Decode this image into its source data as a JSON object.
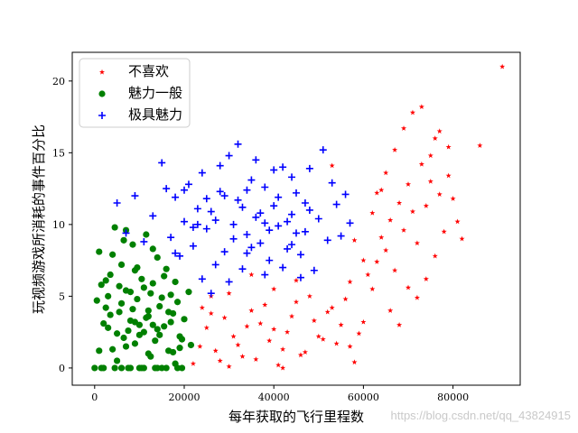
{
  "chart_data": {
    "type": "scatter",
    "title": "",
    "xlabel": "每年获取的飞行里程数",
    "ylabel": "玩视频游戏所消耗的事件百分比",
    "xlim": [
      -5000,
      95000
    ],
    "ylim": [
      -1.2,
      22
    ],
    "xticks": [
      0,
      20000,
      40000,
      60000,
      80000
    ],
    "xtick_labels": [
      "0",
      "20000",
      "40000",
      "60000",
      "80000"
    ],
    "yticks": [
      0,
      5,
      10,
      15,
      20
    ],
    "ytick_labels": [
      "0",
      "5",
      "10",
      "15",
      "20"
    ],
    "grid": false,
    "legend_position": "top-left",
    "series": [
      {
        "name": "不喜欢",
        "color": "#ff0000",
        "marker": "star",
        "points": [
          [
            22000,
            0.3
          ],
          [
            23500,
            1.5
          ],
          [
            25000,
            2.8
          ],
          [
            27000,
            1.2
          ],
          [
            29000,
            3.5
          ],
          [
            31000,
            2.2
          ],
          [
            33000,
            0.8
          ],
          [
            35000,
            4.0
          ],
          [
            37000,
            3.1
          ],
          [
            39000,
            1.9
          ],
          [
            41000,
            0.2
          ],
          [
            43000,
            2.5
          ],
          [
            45000,
            4.6
          ],
          [
            47000,
            1.1
          ],
          [
            49000,
            3.3
          ],
          [
            51000,
            2.0
          ],
          [
            53000,
            4.2
          ],
          [
            55000,
            3.0
          ],
          [
            57000,
            1.5
          ],
          [
            59000,
            2.4
          ],
          [
            24000,
            4.2
          ],
          [
            26000,
            3.8
          ],
          [
            28000,
            0.5
          ],
          [
            30000,
            5.2
          ],
          [
            32000,
            1.6
          ],
          [
            34000,
            2.9
          ],
          [
            36000,
            0.6
          ],
          [
            38000,
            4.4
          ],
          [
            40000,
            2.7
          ],
          [
            42000,
            1.3
          ],
          [
            44000,
            3.6
          ],
          [
            46000,
            0.9
          ],
          [
            48000,
            5.0
          ],
          [
            50000,
            2.2
          ],
          [
            52000,
            3.9
          ],
          [
            54000,
            1.7
          ],
          [
            56000,
            4.8
          ],
          [
            58000,
            0.4
          ],
          [
            60000,
            3.2
          ],
          [
            62000,
            5.5
          ],
          [
            61000,
            6.5
          ],
          [
            63000,
            7.4
          ],
          [
            64000,
            9.1
          ],
          [
            65000,
            8.2
          ],
          [
            66000,
            10.3
          ],
          [
            67000,
            6.8
          ],
          [
            68000,
            11.5
          ],
          [
            69000,
            9.6
          ],
          [
            70000,
            12.8
          ],
          [
            71000,
            10.9
          ],
          [
            72000,
            8.7
          ],
          [
            73000,
            14.2
          ],
          [
            74000,
            11.3
          ],
          [
            75000,
            13.0
          ],
          [
            76000,
            16.0
          ],
          [
            77000,
            12.1
          ],
          [
            78000,
            9.5
          ],
          [
            79000,
            15.4
          ],
          [
            80000,
            11.8
          ],
          [
            81000,
            10.2
          ],
          [
            66000,
            4.0
          ],
          [
            68000,
            3.0
          ],
          [
            70000,
            5.6
          ],
          [
            72000,
            4.9
          ],
          [
            74000,
            6.2
          ],
          [
            76000,
            7.8
          ],
          [
            63000,
            12.2
          ],
          [
            65000,
            13.6
          ],
          [
            67000,
            15.2
          ],
          [
            69000,
            16.7
          ],
          [
            71000,
            17.8
          ],
          [
            73000,
            18.2
          ],
          [
            75000,
            14.8
          ],
          [
            77000,
            16.5
          ],
          [
            79000,
            13.4
          ],
          [
            82000,
            9.0
          ],
          [
            86000,
            15.5
          ],
          [
            91000,
            21.0
          ],
          [
            53000,
            14.1
          ],
          [
            58000,
            8.9
          ],
          [
            62000,
            10.8
          ],
          [
            64000,
            12.4
          ],
          [
            60000,
            7.5
          ],
          [
            57000,
            6.0
          ],
          [
            35000,
            6.5
          ],
          [
            40000,
            5.5
          ],
          [
            45000,
            6.1
          ],
          [
            26000,
            5.0
          ],
          [
            30000,
            0.1
          ],
          [
            42000,
            0.0
          ]
        ]
      },
      {
        "name": "魅力一般",
        "color": "#008000",
        "marker": "circle",
        "points": [
          [
            0,
            0.0
          ],
          [
            1000,
            8.1
          ],
          [
            1500,
            5.8
          ],
          [
            2000,
            0.0
          ],
          [
            2500,
            4.2
          ],
          [
            3000,
            2.8
          ],
          [
            3500,
            6.5
          ],
          [
            4000,
            1.3
          ],
          [
            4500,
            9.8
          ],
          [
            5000,
            0.5
          ],
          [
            5500,
            3.9
          ],
          [
            6000,
            7.2
          ],
          [
            6500,
            2.1
          ],
          [
            7000,
            5.4
          ],
          [
            7500,
            0.0
          ],
          [
            8000,
            3.3
          ],
          [
            8500,
            8.6
          ],
          [
            9000,
            1.7
          ],
          [
            9500,
            4.8
          ],
          [
            10000,
            0.0
          ],
          [
            10500,
            6.2
          ],
          [
            11000,
            2.5
          ],
          [
            11500,
            9.3
          ],
          [
            12000,
            3.6
          ],
          [
            12500,
            0.8
          ],
          [
            13000,
            5.9
          ],
          [
            13500,
            1.9
          ],
          [
            14000,
            7.7
          ],
          [
            14500,
            4.3
          ],
          [
            15000,
            0.0
          ],
          [
            15500,
            2.9
          ],
          [
            16000,
            6.9
          ],
          [
            16500,
            1.2
          ],
          [
            17000,
            5.1
          ],
          [
            17500,
            3.8
          ],
          [
            18000,
            0.3
          ],
          [
            18500,
            4.6
          ],
          [
            19000,
            2.2
          ],
          [
            19500,
            0.0
          ],
          [
            20000,
            3.4
          ],
          [
            21000,
            5.3
          ],
          [
            21500,
            1.6
          ],
          [
            2000,
            3.1
          ],
          [
            3000,
            5.0
          ],
          [
            4000,
            7.9
          ],
          [
            5000,
            2.4
          ],
          [
            6000,
            4.5
          ],
          [
            7000,
            9.6
          ],
          [
            8000,
            0.0
          ],
          [
            9000,
            6.8
          ],
          [
            10000,
            3.0
          ],
          [
            11000,
            5.6
          ],
          [
            12000,
            1.0
          ],
          [
            13000,
            8.3
          ],
          [
            14000,
            2.7
          ],
          [
            15000,
            4.9
          ],
          [
            16000,
            0.0
          ],
          [
            17000,
            3.2
          ],
          [
            18000,
            6.0
          ],
          [
            19000,
            1.4
          ],
          [
            1000,
            1.2
          ],
          [
            1500,
            0.0
          ],
          [
            2500,
            6.1
          ],
          [
            3500,
            3.7
          ],
          [
            4500,
            0.0
          ],
          [
            5500,
            5.7
          ],
          [
            6500,
            8.9
          ],
          [
            7500,
            2.6
          ],
          [
            8500,
            4.1
          ],
          [
            9500,
            7.0
          ],
          [
            10500,
            0.0
          ],
          [
            11500,
            3.5
          ],
          [
            12500,
            5.2
          ],
          [
            13500,
            0.0
          ],
          [
            14500,
            2.3
          ],
          [
            15500,
            6.4
          ],
          [
            16500,
            3.9
          ],
          [
            17500,
            1.1
          ],
          [
            18500,
            0.0
          ],
          [
            19500,
            2.0
          ],
          [
            500,
            4.7
          ],
          [
            6000,
            0.0
          ],
          [
            9000,
            3.2
          ],
          [
            12000,
            4.0
          ],
          [
            14000,
            0.0
          ],
          [
            8000,
            5.3
          ],
          [
            10000,
            2.3
          ],
          [
            7000,
            1.5
          ],
          [
            11000,
            0.0
          ],
          [
            13000,
            3.0
          ]
        ]
      },
      {
        "name": "极具魅力",
        "color": "#0000ff",
        "marker": "plus",
        "points": [
          [
            5000,
            11.5
          ],
          [
            7000,
            9.4
          ],
          [
            9000,
            12.0
          ],
          [
            11000,
            8.8
          ],
          [
            13000,
            10.6
          ],
          [
            15000,
            14.3
          ],
          [
            16000,
            12.5
          ],
          [
            17000,
            9.1
          ],
          [
            18000,
            11.9
          ],
          [
            19000,
            7.8
          ],
          [
            20000,
            10.2
          ],
          [
            21000,
            12.8
          ],
          [
            22000,
            8.5
          ],
          [
            23000,
            11.1
          ],
          [
            24000,
            13.6
          ],
          [
            25000,
            9.7
          ],
          [
            26000,
            10.9
          ],
          [
            27000,
            7.2
          ],
          [
            28000,
            12.3
          ],
          [
            29000,
            8.1
          ],
          [
            30000,
            14.8
          ],
          [
            31000,
            10.0
          ],
          [
            32000,
            11.7
          ],
          [
            33000,
            6.9
          ],
          [
            34000,
            9.3
          ],
          [
            35000,
            13.1
          ],
          [
            36000,
            10.5
          ],
          [
            37000,
            8.7
          ],
          [
            38000,
            12.6
          ],
          [
            39000,
            7.5
          ],
          [
            40000,
            11.3
          ],
          [
            41000,
            9.9
          ],
          [
            42000,
            14.0
          ],
          [
            43000,
            8.3
          ],
          [
            44000,
            10.7
          ],
          [
            45000,
            12.2
          ],
          [
            46000,
            7.9
          ],
          [
            47000,
            9.5
          ],
          [
            48000,
            11.0
          ],
          [
            49000,
            6.8
          ],
          [
            50000,
            10.4
          ],
          [
            51000,
            15.2
          ],
          [
            52000,
            8.9
          ],
          [
            53000,
            12.9
          ],
          [
            54000,
            11.4
          ],
          [
            55000,
            9.2
          ],
          [
            56000,
            12.1
          ],
          [
            57000,
            10.1
          ],
          [
            24000,
            6.2
          ],
          [
            26000,
            5.2
          ],
          [
            28000,
            14.1
          ],
          [
            30000,
            6.0
          ],
          [
            32000,
            15.6
          ],
          [
            34000,
            8.0
          ],
          [
            36000,
            14.5
          ],
          [
            38000,
            6.5
          ],
          [
            40000,
            13.8
          ],
          [
            42000,
            7.0
          ],
          [
            44000,
            13.3
          ],
          [
            46000,
            6.3
          ],
          [
            48000,
            13.9
          ],
          [
            25000,
            11.8
          ],
          [
            27000,
            10.3
          ],
          [
            29000,
            12.0
          ],
          [
            31000,
            9.0
          ],
          [
            33000,
            11.2
          ],
          [
            35000,
            8.4
          ],
          [
            37000,
            10.8
          ],
          [
            39000,
            9.6
          ],
          [
            41000,
            11.9
          ],
          [
            43000,
            10.2
          ],
          [
            45000,
            9.4
          ],
          [
            47000,
            11.5
          ],
          [
            22000,
            9.8
          ],
          [
            20000,
            12.4
          ],
          [
            18000,
            8.0
          ],
          [
            23000,
            10.0
          ],
          [
            34000,
            12.4
          ],
          [
            38000,
            10.1
          ],
          [
            44000,
            8.6
          ]
        ]
      }
    ]
  },
  "watermark": "https://blog.csdn.net/qq_43824915"
}
